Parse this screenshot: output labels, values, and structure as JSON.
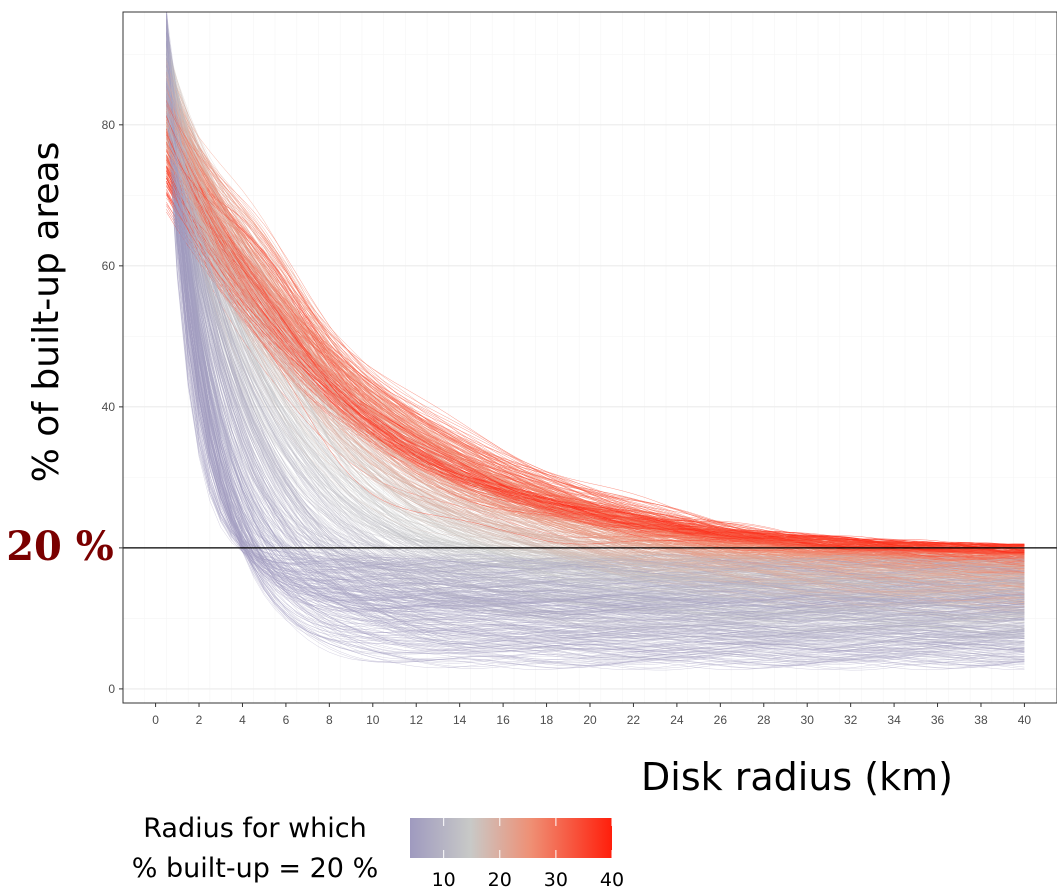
{
  "chart_data": {
    "type": "line",
    "xlabel": "Disk radius (km)",
    "ylabel": "% of built-up areas",
    "xlim": [
      -1.5,
      41.5
    ],
    "ylim": [
      -2,
      96
    ],
    "x_ticks": [
      0,
      2,
      4,
      6,
      8,
      10,
      12,
      14,
      16,
      18,
      20,
      22,
      24,
      26,
      28,
      30,
      32,
      34,
      36,
      38,
      40
    ],
    "y_ticks": [
      0,
      20,
      40,
      60,
      80
    ],
    "y_tick_labels": [
      "0",
      "",
      "40",
      "60",
      "80"
    ],
    "grid": true,
    "reference_line": {
      "y": 20,
      "label": "20 %"
    },
    "description_of_series": "Several hundred city curves of % built-up area vs. disk radius (0.5–40 km), each coloured by the radius at which the curve crosses 20 %.",
    "representative_series": [
      {
        "crossing_radius": 5,
        "start": 86,
        "floor": 4
      },
      {
        "crossing_radius": 8,
        "start": 84,
        "floor": 8
      },
      {
        "crossing_radius": 12,
        "start": 80,
        "floor": 12
      },
      {
        "crossing_radius": 18,
        "start": 76,
        "floor": 15
      },
      {
        "crossing_radius": 25,
        "start": 72,
        "floor": 17
      },
      {
        "crossing_radius": 33,
        "start": 70,
        "floor": 19
      },
      {
        "crossing_radius": 40,
        "start": 68,
        "floor": 22
      }
    ],
    "series_count": 900,
    "x_start": 0.5,
    "x_end": 40
  },
  "legend": {
    "title_line1": "Radius for which",
    "title_line2": "% built-up = 20 %",
    "labels": [
      "10",
      "20",
      "30",
      "40"
    ],
    "range": [
      4,
      40
    ],
    "colors": [
      "#9f9abf",
      "#c8c9c7",
      "#ef8f74",
      "#ff1e0b"
    ]
  },
  "colors": {
    "reference_line": "#000000",
    "ref_label": "#7a0000",
    "grid_major": "#ebebeb",
    "grid_minor": "#f5f5f5",
    "panel_border": "#333333"
  }
}
